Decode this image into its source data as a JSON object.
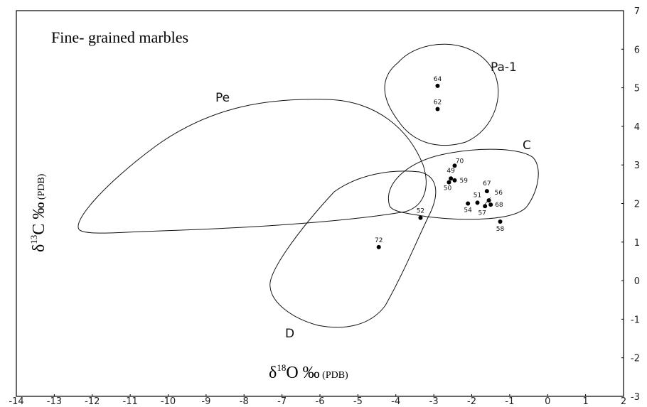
{
  "chart_data": {
    "type": "scatter",
    "title": "Fine- grained marbles",
    "xlabel": {
      "prefix": "δ",
      "sup": "18",
      "main": "O ‰",
      "suffix": " (PDB)"
    },
    "ylabel": {
      "prefix": "δ",
      "sup": "13",
      "main": "C ‰",
      "suffix": " (PDB)"
    },
    "xlim": [
      -14,
      2
    ],
    "ylim": [
      -3,
      7
    ],
    "xticks": [
      -14,
      -13,
      -12,
      -11,
      -10,
      -9,
      -8,
      -7,
      -6,
      -5,
      -4,
      -3,
      -2,
      -1,
      0,
      1,
      2
    ],
    "yticks": [
      -3,
      -2,
      -1,
      0,
      1,
      2,
      3,
      4,
      5,
      6,
      7
    ],
    "grid": false,
    "points": [
      {
        "label": "64",
        "x": -2.9,
        "y": 5.05
      },
      {
        "label": "62",
        "x": -2.9,
        "y": 4.45
      },
      {
        "label": "70",
        "x": -2.45,
        "y": 2.98
      },
      {
        "label": "49",
        "x": -2.55,
        "y": 2.65
      },
      {
        "label": "59",
        "x": -2.45,
        "y": 2.6
      },
      {
        "label": "50",
        "x": -2.6,
        "y": 2.55
      },
      {
        "label": "67",
        "x": -1.6,
        "y": 2.32
      },
      {
        "label": "56",
        "x": -1.55,
        "y": 2.08
      },
      {
        "label": "51",
        "x": -1.85,
        "y": 2.02
      },
      {
        "label": "54",
        "x": -2.1,
        "y": 2.0
      },
      {
        "label": "68",
        "x": -1.5,
        "y": 1.97
      },
      {
        "label": "57",
        "x": -1.65,
        "y": 1.93
      },
      {
        "label": "52",
        "x": -3.35,
        "y": 1.63
      },
      {
        "label": "58",
        "x": -1.25,
        "y": 1.53
      },
      {
        "label": "72",
        "x": -4.45,
        "y": 0.87
      }
    ],
    "fields": [
      {
        "name": "Pe"
      },
      {
        "name": "Pa-1"
      },
      {
        "name": "C"
      },
      {
        "name": "D"
      }
    ]
  }
}
